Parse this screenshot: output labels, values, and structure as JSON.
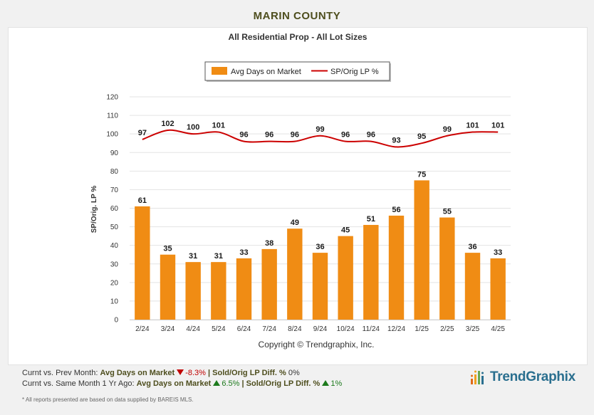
{
  "page": {
    "title": "MARIN COUNTY"
  },
  "chart_data": {
    "type": "bar+line",
    "title": "All Residential Prop - All Lot Sizes",
    "categories": [
      "2/24",
      "3/24",
      "4/24",
      "5/24",
      "6/24",
      "7/24",
      "8/24",
      "9/24",
      "10/24",
      "11/24",
      "12/24",
      "1/25",
      "2/25",
      "3/25",
      "4/25"
    ],
    "series": [
      {
        "name": "Avg Days on Market",
        "kind": "bar",
        "color": "#f08c14",
        "values": [
          61,
          35,
          31,
          31,
          33,
          38,
          49,
          36,
          45,
          51,
          56,
          75,
          55,
          36,
          33
        ]
      },
      {
        "name": "SP/Orig LP %",
        "kind": "line",
        "color": "#cc0000",
        "values": [
          97,
          102,
          100,
          101,
          96,
          96,
          96,
          99,
          96,
          96,
          93,
          95,
          99,
          101,
          101
        ]
      }
    ],
    "ylabel": "SP/Orig. LP %",
    "ylim": [
      0,
      120
    ],
    "yticks": [
      0,
      10,
      20,
      30,
      40,
      50,
      60,
      70,
      80,
      90,
      100,
      110,
      120
    ],
    "copyright": "Copyright © Trendgraphix, Inc."
  },
  "footer": {
    "prev_month_prefix": "Curnt vs. Prev Month:",
    "yoy_prefix": "Curnt vs. Same Month 1 Yr Ago:",
    "dom_label": "Avg Days on Market",
    "sold_label": "Sold/Orig LP Diff. %",
    "prev_dom_change": "-8.3%",
    "prev_sold_change": "0%",
    "yoy_dom_change": "6.5%",
    "yoy_sold_change": "1%",
    "separator": "|",
    "disclaimer": "* All reports presented are based on data supplied by BAREIS MLS."
  },
  "logo": {
    "text": "TrendGraphix",
    "icon": "bar-chart-logo-icon"
  }
}
